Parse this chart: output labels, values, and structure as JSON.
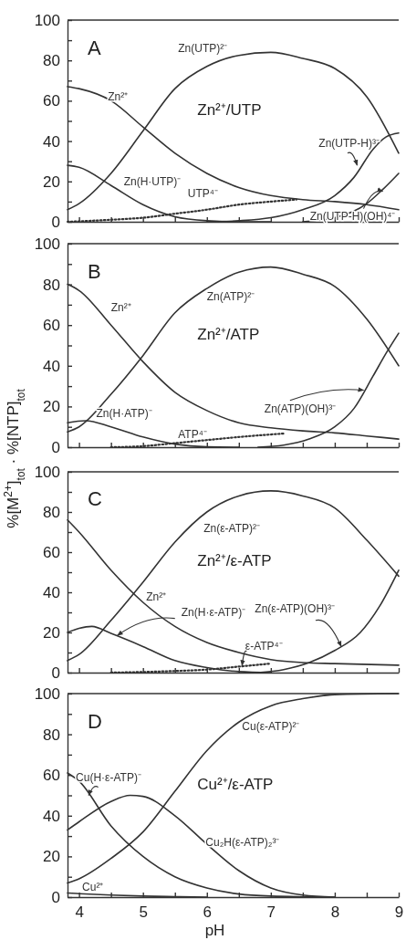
{
  "chart_data": [
    {
      "type": "line",
      "title": "A",
      "subtitle": "Zn²⁺/UTP",
      "xlim": [
        3.82,
        9.0
      ],
      "xticks": [
        4,
        {
          "value": 4.5,
          "label": null
        },
        5,
        {
          "value": 5.5,
          "label": null
        },
        6,
        {
          "value": 6.5,
          "label": null
        },
        7,
        {
          "value": 7.5,
          "label": null
        },
        8,
        {
          "value": 8.5,
          "label": null
        },
        9
      ],
      "ylim": [
        0,
        100
      ],
      "yticks": [
        0,
        {
          "value": 10,
          "label": null
        },
        20,
        {
          "value": 30,
          "label": null
        },
        40,
        {
          "value": 50,
          "label": null
        },
        60,
        {
          "value": 70,
          "label": null
        },
        80,
        {
          "value": 90,
          "label": null
        },
        100
      ],
      "tick_labels": "y",
      "series": [
        {
          "name": "Zn²⁺",
          "color": "#333333",
          "x": [
            3.82,
            4.0,
            4.5,
            5.0,
            5.5,
            6.0,
            6.5,
            7.0,
            7.5,
            8.0,
            8.5,
            9.0
          ],
          "values": [
            67,
            66,
            60,
            47,
            34,
            24,
            17,
            13,
            11,
            10,
            8.5,
            6
          ]
        },
        {
          "name": "Zn(UTP)²⁻",
          "color": "#333333",
          "x": [
            3.82,
            4.0,
            4.5,
            5.0,
            5.5,
            6.0,
            6.5,
            7.0,
            7.5,
            8.0,
            8.5,
            9.0
          ],
          "values": [
            6,
            9,
            24,
            45,
            66,
            77,
            82.5,
            84,
            81,
            76,
            62,
            34
          ]
        },
        {
          "name": "Zn(H·UTP)⁻",
          "color": "#333333",
          "x": [
            3.82,
            4.0,
            4.5,
            5.0,
            5.5,
            6.0,
            6.5,
            7.0
          ],
          "values": [
            28,
            27,
            18,
            8.5,
            2.5,
            0.5,
            0,
            0
          ]
        },
        {
          "name": "UTP⁴⁻",
          "color": "#333333",
          "line_style": "dotted",
          "x": [
            3.82,
            4.5,
            5.0,
            5.5,
            6.0,
            6.5,
            7.0,
            7.4
          ],
          "values": [
            0,
            1,
            2,
            4,
            6,
            8.5,
            10,
            11
          ]
        },
        {
          "name": "Zn(UTP-H)³⁻",
          "color": "#333333",
          "x": [
            6.0,
            6.5,
            7.0,
            7.5,
            8.0,
            8.3,
            8.6,
            8.8,
            9.0
          ],
          "values": [
            0,
            0.5,
            2,
            6,
            13,
            22,
            36,
            42,
            44
          ]
        },
        {
          "name": "Zn(UTP-H)(OH)⁴⁻",
          "color": "#333333",
          "x": [
            7.5,
            8.0,
            8.5,
            8.75,
            9.0
          ],
          "values": [
            0,
            2,
            9,
            16,
            24
          ]
        }
      ]
    },
    {
      "type": "line",
      "title": "B",
      "subtitle": "Zn²⁺/ATP",
      "ylabel": "%[M$^{2+}$]$_{tot}$ · %[NTP]$_{tot}$",
      "xlim": [
        3.82,
        9.0
      ],
      "xticks": [
        4,
        {
          "value": 4.5,
          "label": null
        },
        5,
        {
          "value": 5.5,
          "label": null
        },
        6,
        {
          "value": 6.5,
          "label": null
        },
        7,
        {
          "value": 7.5,
          "label": null
        },
        8,
        {
          "value": 8.5,
          "label": null
        },
        9
      ],
      "ylim": [
        0,
        100
      ],
      "yticks": [
        0,
        {
          "value": 10,
          "label": null
        },
        20,
        {
          "value": 30,
          "label": null
        },
        40,
        {
          "value": 50,
          "label": null
        },
        60,
        {
          "value": 70,
          "label": null
        },
        80,
        {
          "value": 90,
          "label": null
        },
        100
      ],
      "tick_labels": "y",
      "series": [
        {
          "name": "Zn²⁺",
          "color": "#333333",
          "x": [
            3.82,
            4.0,
            4.5,
            5.0,
            5.5,
            6.0,
            6.5,
            7.0,
            7.5,
            8.0,
            8.5,
            9.0
          ],
          "values": [
            80,
            77,
            60,
            42,
            27,
            18,
            12,
            9.5,
            8,
            7,
            5.5,
            4
          ]
        },
        {
          "name": "Zn(ATP)²⁻",
          "color": "#333333",
          "x": [
            3.82,
            4.0,
            4.5,
            5.0,
            5.5,
            6.0,
            6.5,
            7.0,
            7.5,
            8.0,
            8.5,
            9.0
          ],
          "values": [
            7.5,
            10,
            26,
            45,
            66,
            78,
            86,
            88.5,
            85,
            79,
            63,
            40
          ]
        },
        {
          "name": "Zn(H·ATP)⁻",
          "color": "#333333",
          "x": [
            3.82,
            4.1,
            4.5,
            5.0,
            5.5,
            6.0,
            6.5
          ],
          "values": [
            12,
            13,
            10,
            5,
            1.5,
            0.2,
            0
          ]
        },
        {
          "name": "ATP⁴⁻",
          "color": "#333333",
          "line_style": "dotted",
          "x": [
            4.5,
            5.0,
            5.5,
            6.0,
            6.5,
            7.2
          ],
          "values": [
            0,
            0.5,
            2,
            3.5,
            5,
            6.7
          ]
        },
        {
          "name": "Zn(ATP)(OH)³⁻",
          "color": "#333333",
          "x": [
            6.8,
            7.2,
            7.6,
            8.0,
            8.3,
            8.6,
            8.8,
            9.0
          ],
          "values": [
            0,
            1,
            4,
            10,
            19,
            35,
            46,
            56
          ]
        }
      ]
    },
    {
      "type": "line",
      "title": "C",
      "subtitle": "Zn²⁺/ε-ATP",
      "xlim": [
        3.82,
        9.0
      ],
      "xticks": [
        4,
        {
          "value": 4.5,
          "label": null
        },
        5,
        {
          "value": 5.5,
          "label": null
        },
        6,
        {
          "value": 6.5,
          "label": null
        },
        7,
        {
          "value": 7.5,
          "label": null
        },
        8,
        {
          "value": 8.5,
          "label": null
        },
        9
      ],
      "ylim": [
        0,
        100
      ],
      "yticks": [
        0,
        {
          "value": 10,
          "label": null
        },
        20,
        {
          "value": 30,
          "label": null
        },
        40,
        {
          "value": 50,
          "label": null
        },
        60,
        {
          "value": 70,
          "label": null
        },
        80,
        {
          "value": 90,
          "label": null
        },
        100
      ],
      "tick_labels": "y",
      "series": [
        {
          "name": "Zn²⁺",
          "color": "#333333",
          "x": [
            3.82,
            4.0,
            4.5,
            5.0,
            5.5,
            6.0,
            6.5,
            7.0,
            7.5,
            8.0,
            9.0
          ],
          "values": [
            76,
            70,
            51,
            35,
            23,
            15,
            10,
            6.5,
            5,
            4.5,
            3.7
          ]
        },
        {
          "name": "Zn(ε-ATP)²⁻",
          "color": "#333333",
          "x": [
            3.82,
            4.0,
            4.5,
            5.0,
            5.5,
            6.0,
            6.5,
            7.0,
            7.5,
            8.0,
            8.5,
            9.0
          ],
          "values": [
            6,
            9,
            26,
            45,
            65,
            80,
            88,
            90.5,
            88,
            82,
            66,
            48
          ]
        },
        {
          "name": "Zn(H·ε-ATP)⁻",
          "color": "#333333",
          "x": [
            3.82,
            4.0,
            4.2,
            4.5,
            5.0,
            5.5,
            6.0,
            6.5,
            7.0
          ],
          "values": [
            20,
            22,
            23,
            19.5,
            13,
            6,
            2.5,
            0.5,
            0
          ]
        },
        {
          "name": "ε-ATP⁴⁻",
          "color": "#333333",
          "line_style": "dotted",
          "x": [
            4.5,
            5.5,
            6.0,
            6.5,
            7.0
          ],
          "values": [
            0,
            0.8,
            1.5,
            3,
            4.5
          ]
        },
        {
          "name": "Zn(ε-ATP)(OH)³⁻",
          "color": "#333333",
          "x": [
            6.8,
            7.2,
            7.6,
            8.0,
            8.4,
            8.7,
            9.0
          ],
          "values": [
            0,
            1.5,
            5,
            11,
            20,
            33,
            51
          ]
        }
      ]
    },
    {
      "type": "line",
      "title": "D",
      "subtitle": "Cu²⁺/ε-ATP",
      "xlabel": "pH",
      "xlim": [
        3.82,
        9.0
      ],
      "xticks": [
        4,
        {
          "value": 4.5,
          "label": null
        },
        5,
        {
          "value": 5.5,
          "label": null
        },
        6,
        {
          "value": 6.5,
          "label": null
        },
        7,
        {
          "value": 7.5,
          "label": null
        },
        8,
        {
          "value": 8.5,
          "label": null
        },
        9
      ],
      "ylim": [
        0,
        100
      ],
      "yticks": [
        0,
        {
          "value": 10,
          "label": null
        },
        20,
        {
          "value": 30,
          "label": null
        },
        40,
        {
          "value": 50,
          "label": null
        },
        60,
        {
          "value": 70,
          "label": null
        },
        80,
        {
          "value": 90,
          "label": null
        },
        100
      ],
      "series": [
        {
          "name": "Cu²⁺",
          "color": "#333333",
          "x": [
            3.82,
            4.0,
            4.5,
            5.0,
            5.5,
            6.0
          ],
          "values": [
            2,
            1.7,
            1,
            0.5,
            0.2,
            0
          ]
        },
        {
          "name": "Cu(H·ε-ATP)⁻",
          "color": "#333333",
          "x": [
            3.82,
            4.0,
            4.5,
            5.0,
            5.5,
            6.0,
            6.5,
            7.0,
            8.0
          ],
          "values": [
            61,
            57,
            35,
            20,
            10,
            4.5,
            1.5,
            0.5,
            0
          ]
        },
        {
          "name": "Cu₂H(ε-ATP)₂³⁻",
          "color": "#333333",
          "x": [
            3.82,
            4.0,
            4.5,
            4.8,
            5.0,
            5.5,
            6.0,
            6.5,
            7.0,
            7.5,
            8.0
          ],
          "values": [
            33,
            37,
            47,
            50,
            49.5,
            40,
            26,
            13,
            4.5,
            1,
            0
          ]
        },
        {
          "name": "Cu(ε-ATP)²⁻",
          "color": "#333333",
          "x": [
            3.82,
            4.0,
            4.5,
            5.0,
            5.5,
            6.0,
            6.5,
            7.0,
            7.5,
            8.0,
            9.0
          ],
          "values": [
            7,
            9,
            19,
            32,
            52,
            72,
            86,
            94,
            97.5,
            99.5,
            100
          ]
        }
      ]
    }
  ]
}
